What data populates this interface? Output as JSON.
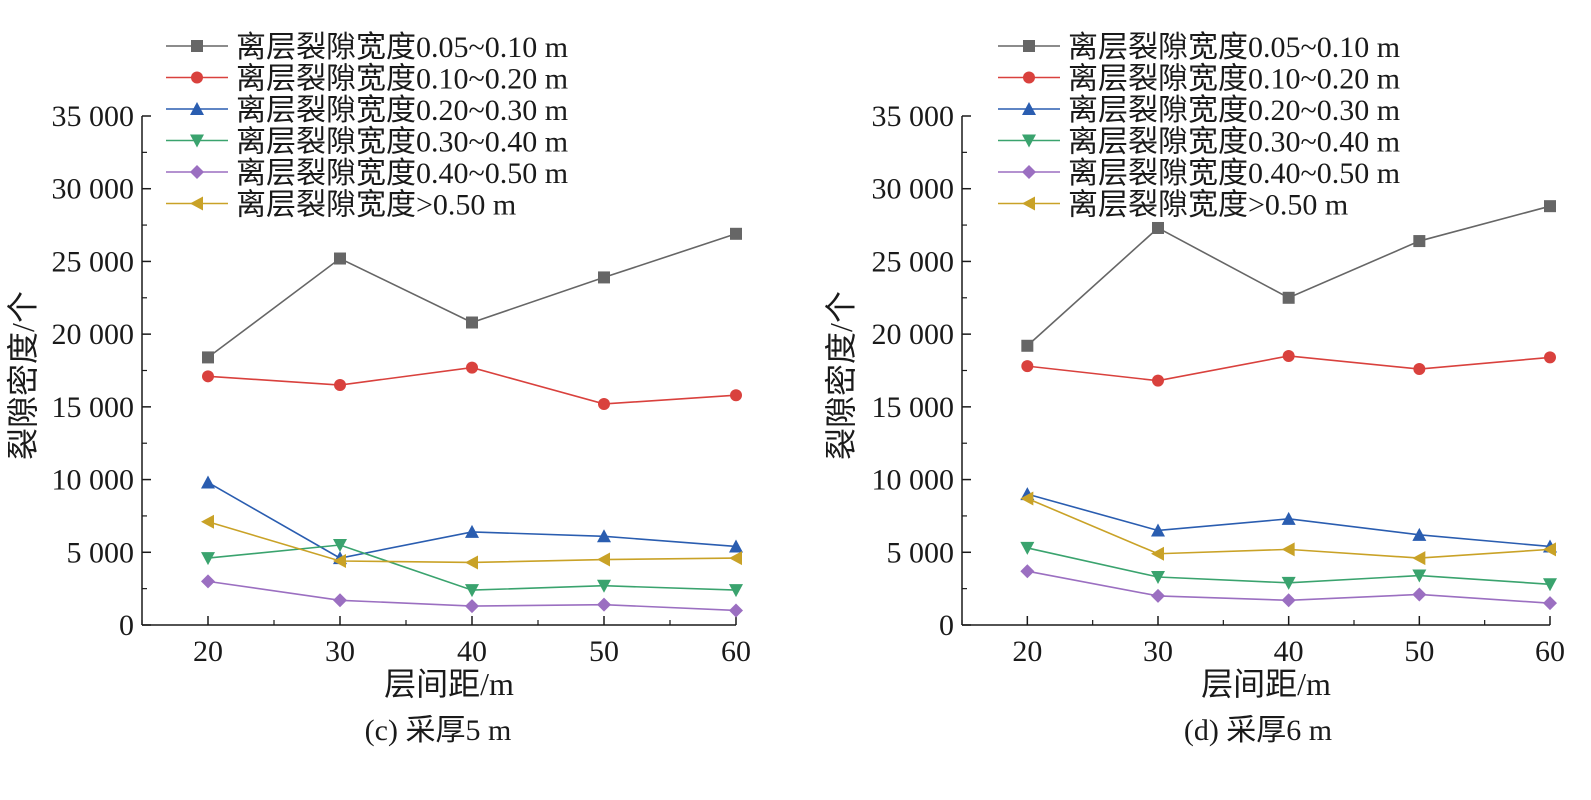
{
  "chart_data": [
    {
      "type": "line",
      "caption": "(c) 采厚5 m",
      "xlabel": "层间距/m",
      "ylabel": "裂隙密度/个",
      "x": [
        20,
        30,
        40,
        50,
        60
      ],
      "x_ticks": [
        "20",
        "30",
        "40",
        "50",
        "60"
      ],
      "y_ticks": [
        "0",
        "5 000",
        "10 000",
        "15 000",
        "20 000",
        "25 000",
        "30 000",
        "35 000"
      ],
      "xlim": [
        15,
        60
      ],
      "ylim": [
        0,
        35000
      ],
      "grid": false,
      "legend_position": "top-left",
      "series": [
        {
          "name": "离层裂隙宽度0.05~0.10 m",
          "color": "#666666",
          "marker": "square",
          "values": [
            18400,
            25200,
            20800,
            23900,
            26900
          ]
        },
        {
          "name": "离层裂隙宽度0.10~0.20 m",
          "color": "#d9413d",
          "marker": "circle",
          "values": [
            17100,
            16500,
            17700,
            15200,
            15800
          ]
        },
        {
          "name": "离层裂隙宽度0.20~0.30 m",
          "color": "#2a5db0",
          "marker": "triangle-up",
          "values": [
            9800,
            4600,
            6400,
            6100,
            5400
          ]
        },
        {
          "name": "离层裂隙宽度0.30~0.40 m",
          "color": "#3aa36e",
          "marker": "triangle-down",
          "values": [
            4600,
            5500,
            2400,
            2700,
            2400
          ]
        },
        {
          "name": "离层裂隙宽度0.40~0.50 m",
          "color": "#9b6fc1",
          "marker": "diamond",
          "values": [
            3000,
            1700,
            1300,
            1400,
            1000
          ]
        },
        {
          "name": "离层裂隙宽度>0.50 m",
          "color": "#c9a227",
          "marker": "triangle-left",
          "values": [
            7100,
            4400,
            4300,
            4500,
            4600
          ]
        }
      ]
    },
    {
      "type": "line",
      "caption": "(d) 采厚6 m",
      "xlabel": "层间距/m",
      "ylabel": "裂隙密度/个",
      "x": [
        20,
        30,
        40,
        50,
        60
      ],
      "x_ticks": [
        "20",
        "30",
        "40",
        "50",
        "60"
      ],
      "y_ticks": [
        "0",
        "5 000",
        "10 000",
        "15 000",
        "20 000",
        "25 000",
        "30 000",
        "35 000"
      ],
      "xlim": [
        15,
        60
      ],
      "ylim": [
        0,
        35000
      ],
      "grid": false,
      "legend_position": "top-left",
      "series": [
        {
          "name": "离层裂隙宽度0.05~0.10 m",
          "color": "#666666",
          "marker": "square",
          "values": [
            19200,
            27300,
            22500,
            26400,
            28800
          ]
        },
        {
          "name": "离层裂隙宽度0.10~0.20 m",
          "color": "#d9413d",
          "marker": "circle",
          "values": [
            17800,
            16800,
            18500,
            17600,
            18400
          ]
        },
        {
          "name": "离层裂隙宽度0.20~0.30 m",
          "color": "#2a5db0",
          "marker": "triangle-up",
          "values": [
            9000,
            6500,
            7300,
            6200,
            5400
          ]
        },
        {
          "name": "离层裂隙宽度0.30~0.40 m",
          "color": "#3aa36e",
          "marker": "triangle-down",
          "values": [
            5300,
            3300,
            2900,
            3400,
            2800
          ]
        },
        {
          "name": "离层裂隙宽度0.40~0.50 m",
          "color": "#9b6fc1",
          "marker": "diamond",
          "values": [
            3700,
            2000,
            1700,
            2100,
            1500
          ]
        },
        {
          "name": "离层裂隙宽度>0.50 m",
          "color": "#c9a227",
          "marker": "triangle-left",
          "values": [
            8700,
            4900,
            5200,
            4600,
            5200
          ]
        }
      ]
    }
  ]
}
